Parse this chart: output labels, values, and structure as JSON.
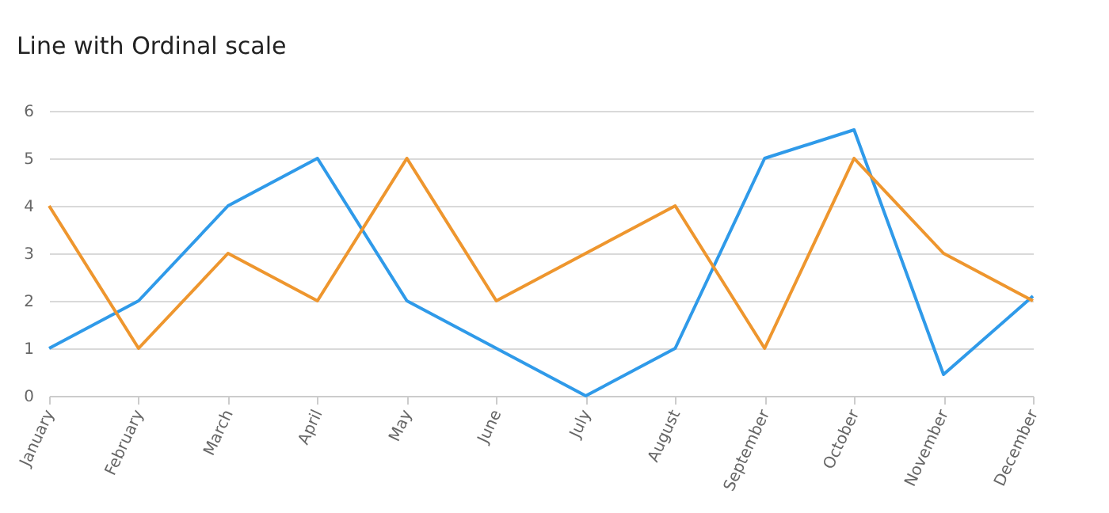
{
  "chart_data": {
    "type": "line",
    "title": "Line with Ordinal scale",
    "categories": [
      "January",
      "February",
      "March",
      "April",
      "May",
      "June",
      "July",
      "August",
      "September",
      "October",
      "November",
      "December"
    ],
    "series": [
      {
        "color": "#2f9ae9",
        "values": [
          1,
          2,
          4,
          5,
          2,
          1,
          0,
          1,
          5,
          5.6,
          0.45,
          2.1
        ]
      },
      {
        "color": "#ee962e",
        "values": [
          4,
          1,
          3,
          2,
          5,
          2,
          3,
          4,
          1,
          5,
          3,
          2
        ]
      }
    ],
    "ylim": [
      0,
      6
    ],
    "yticks": [
      0,
      1,
      2,
      3,
      4,
      5,
      6
    ],
    "grid": "y",
    "marker": "none",
    "line_style": "solid"
  }
}
